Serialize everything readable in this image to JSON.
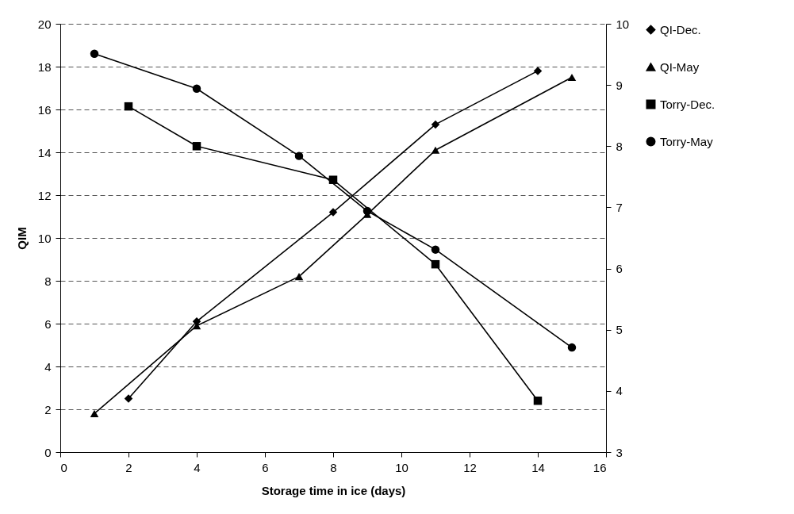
{
  "chart_data": {
    "type": "line",
    "xlabel": "Storage time in ice (days)",
    "ylabel": "QIM",
    "xlim": [
      0,
      16
    ],
    "xticks": [
      0,
      2,
      4,
      6,
      8,
      10,
      12,
      14,
      16
    ],
    "ylim": [
      0,
      20
    ],
    "yticks": [
      0,
      2,
      4,
      6,
      8,
      10,
      12,
      14,
      16,
      18,
      20
    ],
    "y2lim": [
      3,
      10
    ],
    "y2ticks": [
      3,
      4,
      5,
      6,
      7,
      8,
      9,
      10
    ],
    "grid": "y",
    "legend": "right",
    "line_style": "solid",
    "series": [
      {
        "name": "QI-Dec.",
        "color": "#000000",
        "marker": "diamond",
        "x": [
          2,
          4,
          8,
          11,
          14
        ],
        "values": [
          2.5,
          6.1,
          11.2,
          15.3,
          17.8
        ]
      },
      {
        "name": "QI-May",
        "color": "#000000",
        "marker": "triangle",
        "x": [
          1,
          4,
          7,
          9,
          11,
          15
        ],
        "values": [
          1.8,
          5.9,
          8.2,
          11.1,
          14.1,
          17.5
        ]
      },
      {
        "name": "Torry-Dec.",
        "color": "#000000",
        "marker": "square",
        "axis": "y2",
        "x": [
          2,
          4,
          8,
          11,
          14
        ],
        "values": [
          8.65,
          8.0,
          7.45,
          6.07,
          3.84
        ]
      },
      {
        "name": "Torry-May",
        "color": "#000000",
        "marker": "circle",
        "axis": "y2",
        "x": [
          1,
          4,
          7,
          9,
          11,
          15
        ],
        "values": [
          9.51,
          8.94,
          7.84,
          6.94,
          6.31,
          4.71
        ]
      }
    ]
  }
}
